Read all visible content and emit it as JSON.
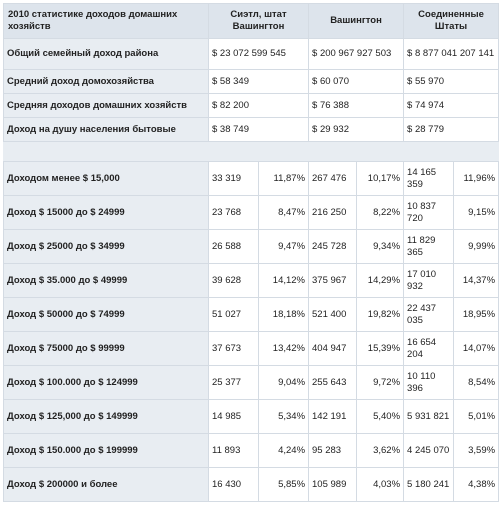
{
  "header": {
    "corner": "2010 статистике доходов домашних хозяйств",
    "columns": [
      "Сиэтл, штат Вашингтон",
      "Вашингтон",
      "Соединенные Штаты"
    ]
  },
  "summary_rows": [
    {
      "label": "Общий семейный доход района",
      "values": [
        "$ 23 072 599 545",
        "$ 200 967 927 503",
        "$ 8 877 041 207 141"
      ]
    },
    {
      "label": "Средний доход домохозяйства",
      "values": [
        "$ 58 349",
        "$ 60 070",
        "$ 55 970"
      ]
    },
    {
      "label": "Средняя доходов домашних хозяйств",
      "values": [
        "$ 82 200",
        "$ 76 388",
        "$ 74 974"
      ]
    },
    {
      "label": "Доход на душу населения бытовые",
      "values": [
        "$ 38 749",
        "$ 29 932",
        "$ 28 779"
      ]
    }
  ],
  "income_bands": [
    {
      "label": "Доходом менее $ 15,000",
      "seattle": [
        "33 319",
        "11,87%"
      ],
      "washington": [
        "267 476",
        "10,17%"
      ],
      "us": [
        "14 165 359",
        "11,96%"
      ]
    },
    {
      "label": "Доход $ 15000 до $ 24999",
      "seattle": [
        "23 768",
        "8,47%"
      ],
      "washington": [
        "216 250",
        "8,22%"
      ],
      "us": [
        "10 837 720",
        "9,15%"
      ]
    },
    {
      "label": "Доход $ 25000 до $ 34999",
      "seattle": [
        "26 588",
        "9,47%"
      ],
      "washington": [
        "245 728",
        "9,34%"
      ],
      "us": [
        "11 829 365",
        "9,99%"
      ]
    },
    {
      "label": "Доход $ 35.000 до $ 49999",
      "seattle": [
        "39 628",
        "14,12%"
      ],
      "washington": [
        "375 967",
        "14,29%"
      ],
      "us": [
        "17 010 932",
        "14,37%"
      ]
    },
    {
      "label": "Доход $ 50000 до $ 74999",
      "seattle": [
        "51 027",
        "18,18%"
      ],
      "washington": [
        "521 400",
        "19,82%"
      ],
      "us": [
        "22 437 035",
        "18,95%"
      ]
    },
    {
      "label": "Доход $ 75000 до $ 99999",
      "seattle": [
        "37 673",
        "13,42%"
      ],
      "washington": [
        "404 947",
        "15,39%"
      ],
      "us": [
        "16 654 204",
        "14,07%"
      ]
    },
    {
      "label": "Доход $ 100.000 до $ 124999",
      "seattle": [
        "25 377",
        "9,04%"
      ],
      "washington": [
        "255 643",
        "9,72%"
      ],
      "us": [
        "10 110 396",
        "8,54%"
      ]
    },
    {
      "label": "Доход $ 125,000 до $ 149999",
      "seattle": [
        "14 985",
        "5,34%"
      ],
      "washington": [
        "142 191",
        "5,40%"
      ],
      "us": [
        "5 931 821",
        "5,01%"
      ]
    },
    {
      "label": "Доход $ 150.000 до $ 199999",
      "seattle": [
        "11 893",
        "4,24%"
      ],
      "washington": [
        "95 283",
        "3,62%"
      ],
      "us": [
        "4 245 070",
        "3,59%"
      ]
    },
    {
      "label": "Доход $ 200000 и более",
      "seattle": [
        "16 430",
        "5,85%"
      ],
      "washington": [
        "105 989",
        "4,03%"
      ],
      "us": [
        "5 180 241",
        "4,38%"
      ]
    }
  ]
}
